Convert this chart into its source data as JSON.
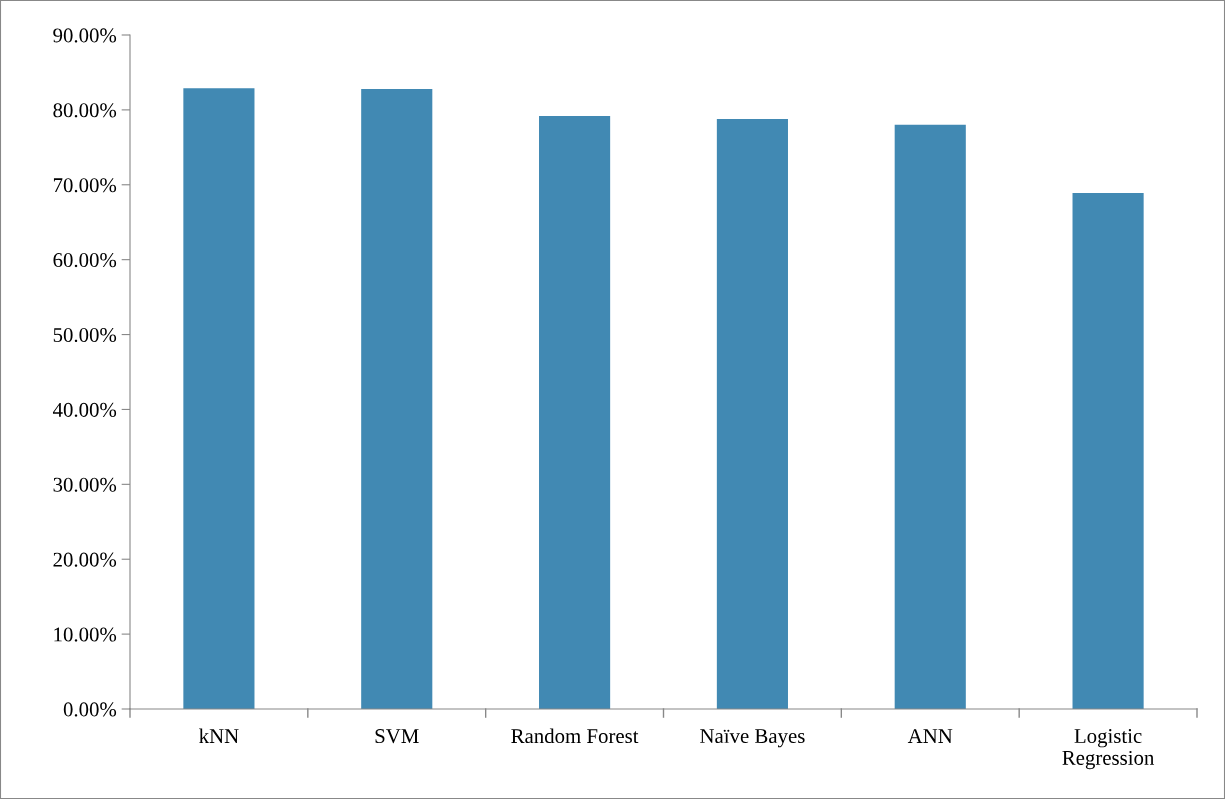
{
  "chart_data": {
    "type": "bar",
    "categories": [
      "kNN",
      "SVM",
      "Random Forest",
      "Naïve Bayes",
      "ANN",
      "Logistic\nRegression"
    ],
    "values": [
      82.9,
      82.8,
      79.2,
      78.8,
      78.0,
      68.9
    ],
    "color": "#4189b3",
    "ylim": [
      0,
      90
    ],
    "yticks": [
      {
        "value": 0,
        "label": "0.00%"
      },
      {
        "value": 10,
        "label": "10.00%"
      },
      {
        "value": 20,
        "label": "20.00%"
      },
      {
        "value": 30,
        "label": "30.00%"
      },
      {
        "value": 40,
        "label": "40.00%"
      },
      {
        "value": 50,
        "label": "50.00%"
      },
      {
        "value": 60,
        "label": "60.00%"
      },
      {
        "value": 70,
        "label": "70.00%"
      },
      {
        "value": 80,
        "label": "80.00%"
      },
      {
        "value": 90,
        "label": "90.00%"
      }
    ],
    "grid": false,
    "legend": false
  }
}
